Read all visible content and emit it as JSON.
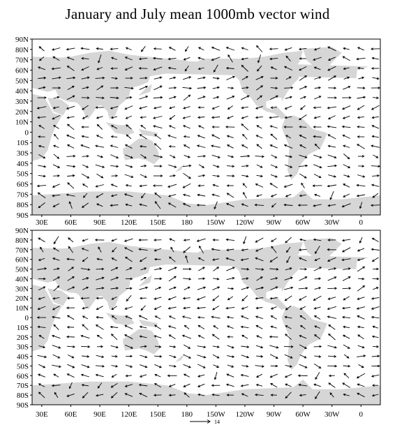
{
  "title": "January and July mean 1000mb vector wind",
  "colors": {
    "land": "#d6d6d6",
    "ocean": "#ffffff",
    "vector": "#000000",
    "frame": "#000000"
  },
  "lat_ticks": [
    "90N",
    "80N",
    "70N",
    "60N",
    "50N",
    "40N",
    "30N",
    "20N",
    "10N",
    "0",
    "10S",
    "20S",
    "30S",
    "40S",
    "50S",
    "60S",
    "70S",
    "80S",
    "90S"
  ],
  "top_lat_ticks": [
    "90N",
    "80N",
    "70N",
    "60N",
    "50N",
    "40N",
    "30N",
    "20N",
    "10N",
    "0",
    "10S",
    "30S",
    "40S",
    "50S",
    "60S",
    "70S",
    "80S",
    "90S"
  ],
  "lon_ticks": [
    "30E",
    "60E",
    "90E",
    "120E",
    "150E",
    "180",
    "150W",
    "120W",
    "90W",
    "60W",
    "30W",
    "0"
  ],
  "reference_vector_label": "14",
  "panels": [
    {
      "id": "january",
      "label": "January"
    },
    {
      "id": "july",
      "label": "July"
    }
  ]
}
